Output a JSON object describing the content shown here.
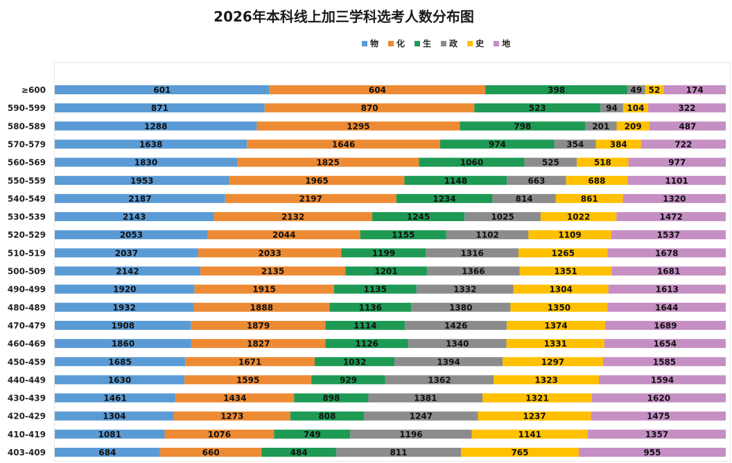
{
  "chart_data": {
    "type": "bar",
    "orientation": "horizontal",
    "stacked": "percent",
    "title": "2026年本科线上加三学科选考人数分布图",
    "xlabel": "",
    "ylabel": "",
    "legend_position": "top",
    "categories": [
      "≥600",
      "590-599",
      "580-589",
      "570-579",
      "560-569",
      "550-559",
      "540-549",
      "530-539",
      "520-529",
      "510-519",
      "500-509",
      "490-499",
      "480-489",
      "470-479",
      "460-469",
      "450-459",
      "440-449",
      "430-439",
      "420-429",
      "410-419",
      "403-409"
    ],
    "series": [
      {
        "name": "物",
        "color": "#5b9bd5",
        "values": [
          601,
          871,
          1288,
          1638,
          1830,
          1953,
          2187,
          2143,
          2053,
          2037,
          2142,
          1920,
          1932,
          1908,
          1860,
          1685,
          1630,
          1461,
          1304,
          1081,
          684
        ]
      },
      {
        "name": "化",
        "color": "#ed8b34",
        "values": [
          604,
          870,
          1295,
          1646,
          1825,
          1965,
          2197,
          2132,
          2044,
          2033,
          2135,
          1915,
          1888,
          1879,
          1827,
          1671,
          1595,
          1434,
          1273,
          1076,
          660
        ]
      },
      {
        "name": "生",
        "color": "#1e9a55",
        "values": [
          398,
          523,
          798,
          974,
          1060,
          1148,
          1234,
          1245,
          1155,
          1199,
          1201,
          1135,
          1136,
          1114,
          1126,
          1032,
          929,
          898,
          808,
          749,
          484
        ]
      },
      {
        "name": "政",
        "color": "#8c8c8c",
        "values": [
          49,
          94,
          201,
          354,
          525,
          663,
          814,
          1025,
          1102,
          1316,
          1366,
          1332,
          1380,
          1426,
          1340,
          1394,
          1362,
          1381,
          1247,
          1196,
          811
        ]
      },
      {
        "name": "史",
        "color": "#ffc000",
        "values": [
          52,
          104,
          209,
          384,
          518,
          688,
          861,
          1022,
          1109,
          1265,
          1351,
          1304,
          1350,
          1374,
          1331,
          1297,
          1323,
          1321,
          1237,
          1141,
          765
        ]
      },
      {
        "name": "地",
        "color": "#c58fc4",
        "values": [
          174,
          322,
          487,
          722,
          977,
          1101,
          1320,
          1472,
          1537,
          1678,
          1681,
          1613,
          1644,
          1689,
          1654,
          1585,
          1594,
          1620,
          1475,
          1357,
          955
        ]
      }
    ]
  }
}
